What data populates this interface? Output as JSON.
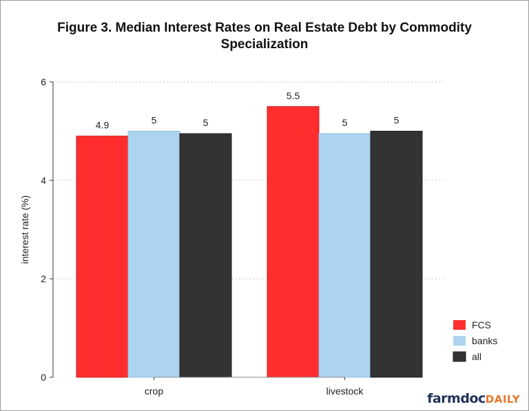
{
  "chart_data": {
    "type": "bar",
    "title": "Figure 3. Median Interest Rates on Real Estate Debt by Commodity Specialization",
    "title_lines": [
      "Figure 3. Median Interest Rates on Real Estate Debt by Commodity",
      "Specialization"
    ],
    "xlabel": "",
    "ylabel": "interest rate (%)",
    "ylim": [
      0,
      6
    ],
    "yticks": [
      "0",
      "2",
      "4",
      "6"
    ],
    "grid": "horizontal dotted",
    "legend": "bottom-right",
    "categories": [
      "crop",
      "livestock"
    ],
    "series": [
      {
        "name": "FCS",
        "color": "#ff2d2d",
        "values": [
          4.9,
          5.5
        ],
        "labels": [
          "4.9",
          "5.5"
        ]
      },
      {
        "name": "banks",
        "color": "#acd4f0",
        "values": [
          5.0,
          4.95
        ],
        "labels": [
          "5",
          "5"
        ]
      },
      {
        "name": "all",
        "color": "#333333",
        "values": [
          4.95,
          5.0
        ],
        "labels": [
          "5",
          "5"
        ]
      }
    ]
  },
  "logo": {
    "main": "farmdoc",
    "accent": "DAILY"
  }
}
